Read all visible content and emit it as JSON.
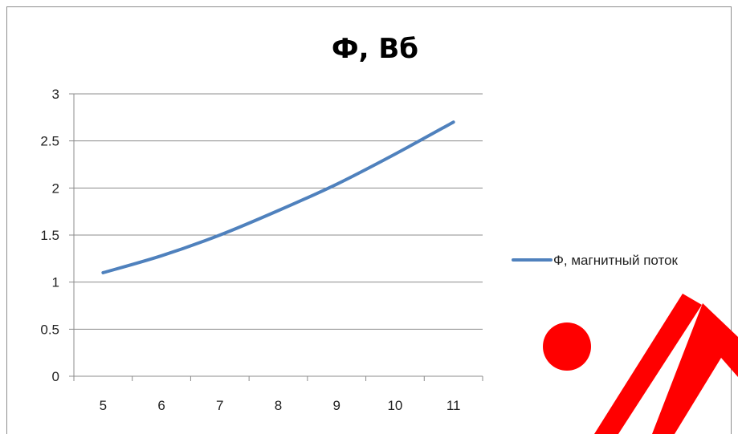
{
  "chart_data": {
    "type": "line",
    "title": "Ф, Вб",
    "xlabel": "",
    "ylabel": "",
    "categories": [
      "5",
      "6",
      "7",
      "8",
      "9",
      "10",
      "11"
    ],
    "x": [
      5,
      6,
      7,
      8,
      9,
      10,
      11
    ],
    "series": [
      {
        "name": "Ф, магнитный поток",
        "values": [
          1.1,
          1.28,
          1.5,
          1.76,
          2.04,
          2.36,
          2.7
        ],
        "color": "#4f81bd"
      }
    ],
    "ylim": [
      0,
      3
    ],
    "yticks": [
      "0",
      "0.5",
      "1",
      "1.5",
      "2",
      "2.5",
      "3"
    ],
    "grid": "horizontal",
    "legend": "right"
  },
  "watermark": {
    "color": "#ff0000"
  }
}
